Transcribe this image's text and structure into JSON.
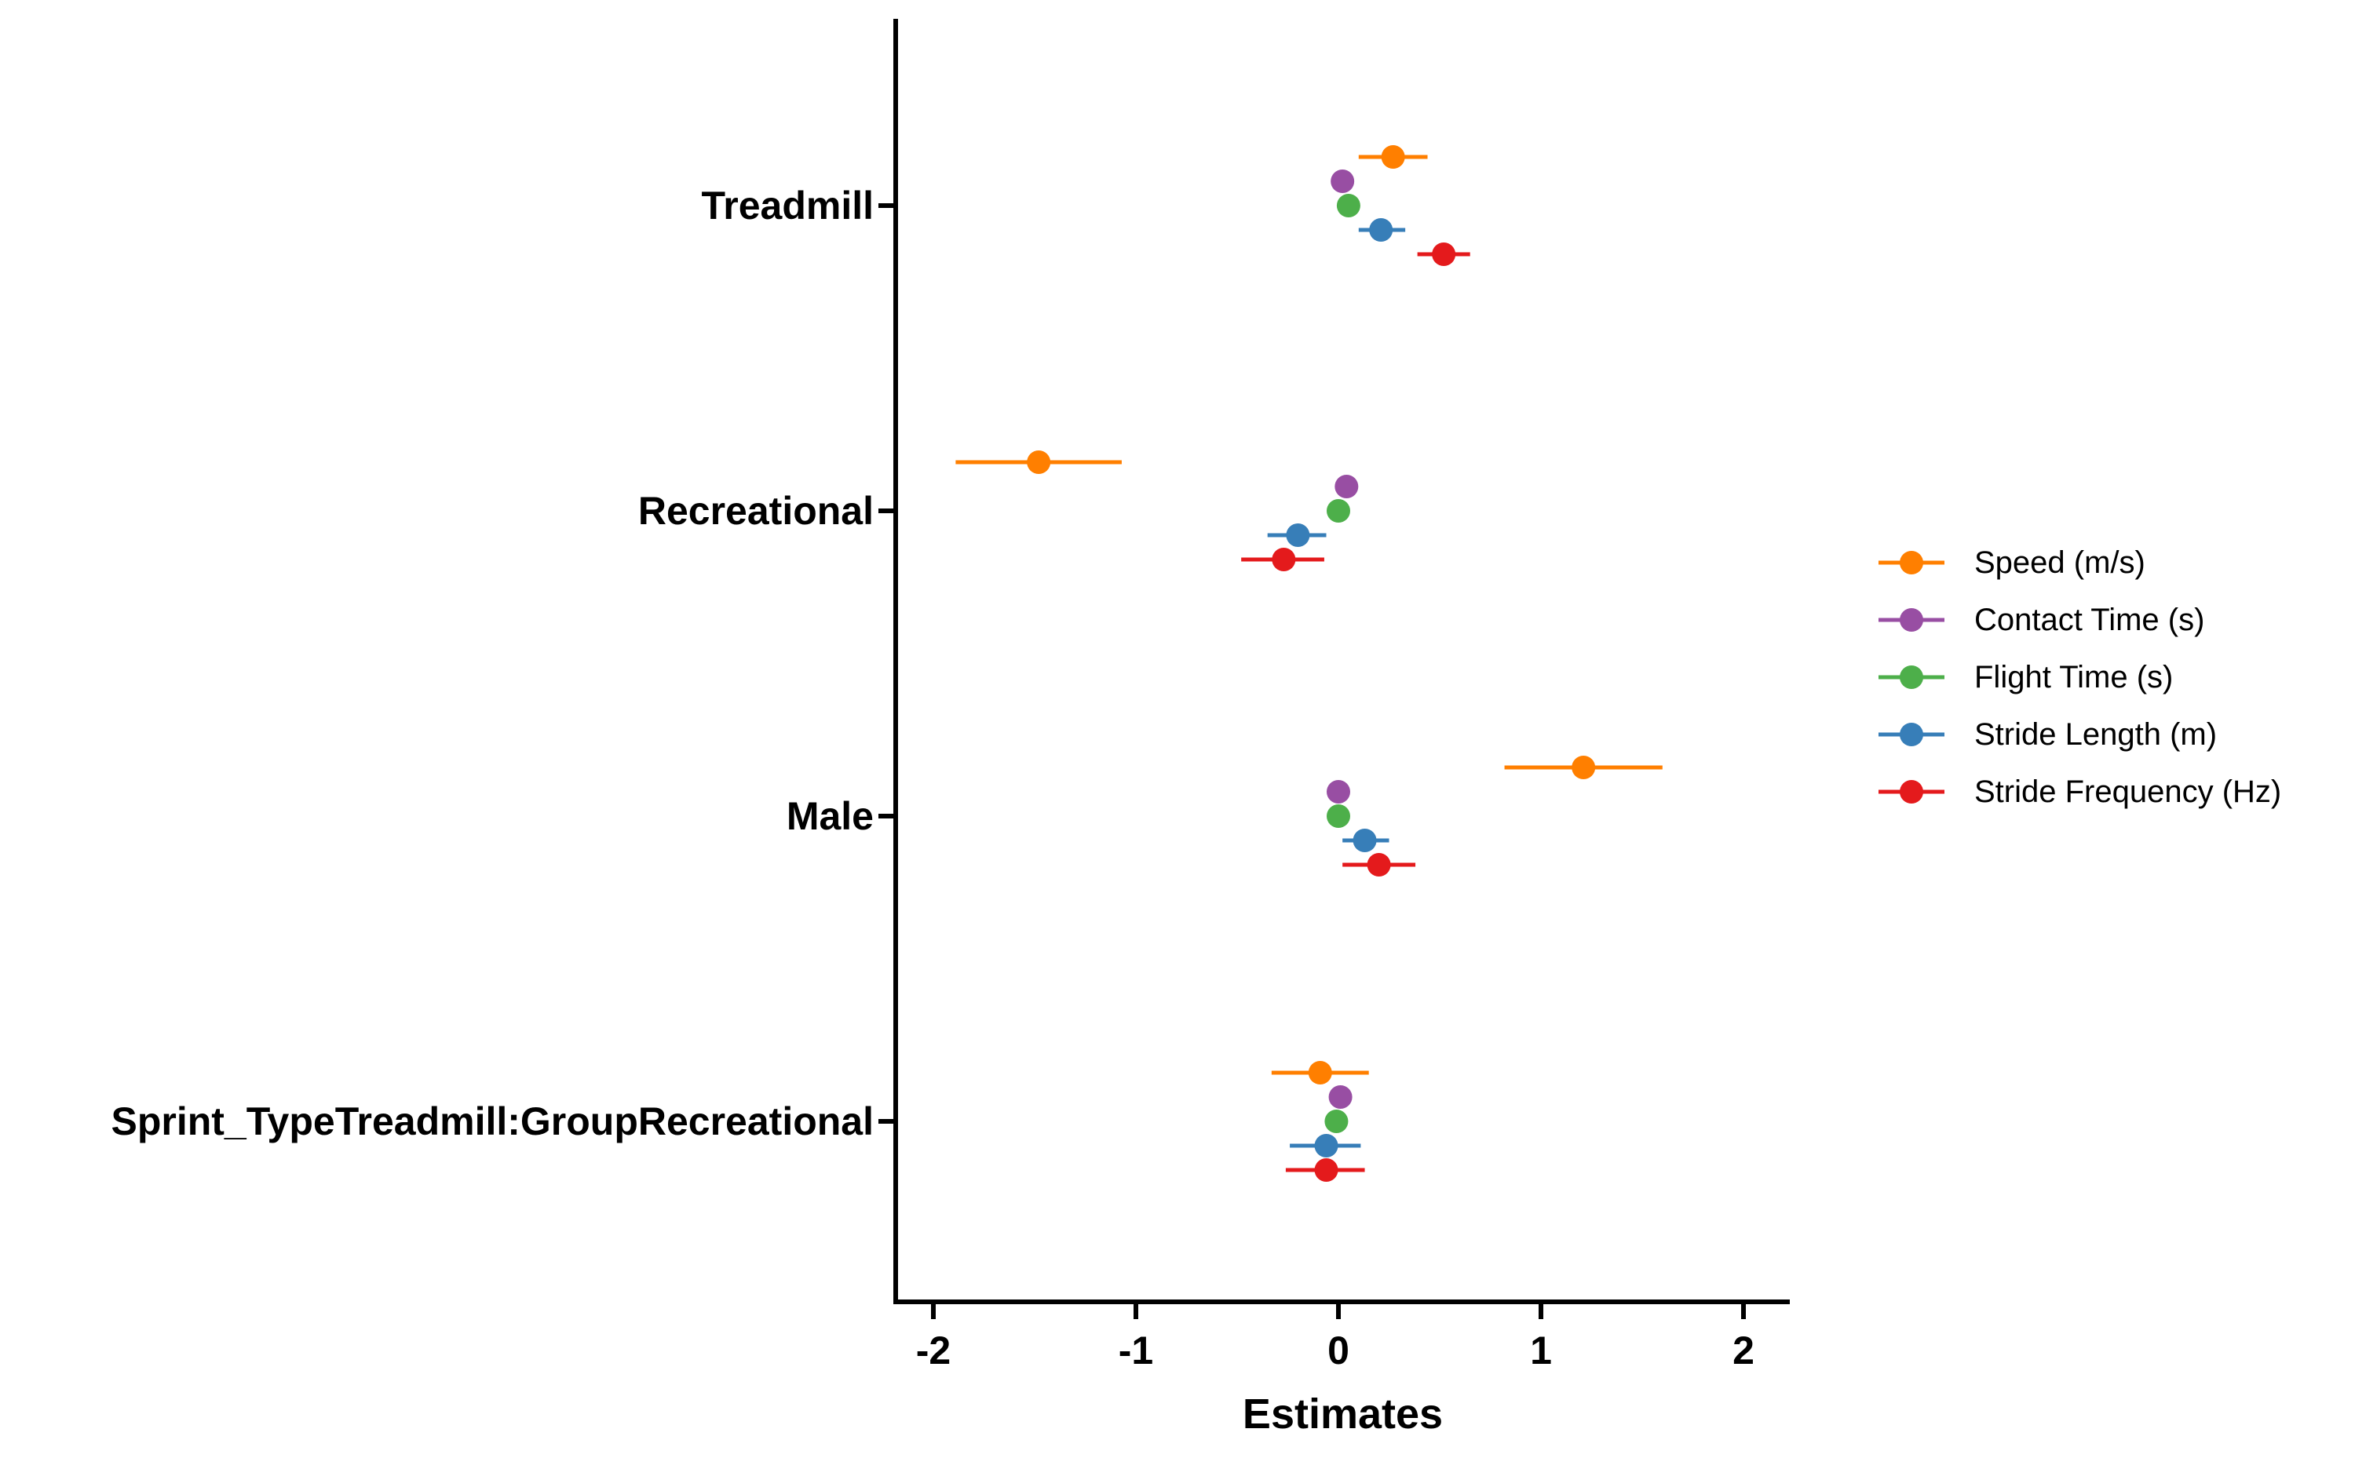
{
  "chart_data": {
    "type": "scatter",
    "subtype": "coefficient-plot",
    "orientation": "horizontal",
    "title": "",
    "xlabel": "Estimates",
    "ylabel": "",
    "xlim": [
      -2.2,
      2.2
    ],
    "xticks": [
      -2,
      -1,
      0,
      1,
      2
    ],
    "xtick_labels": [
      "-2",
      "-1",
      "0",
      "1",
      "2"
    ],
    "categories": [
      "Treadmill",
      "Recreational",
      "Male",
      "Sprint_TypeTreadmill:GroupRecreational"
    ],
    "grid": false,
    "legend_position": "right",
    "series": [
      {
        "name": "Speed (m/s)",
        "color": "#FF7F00",
        "estimates": [
          0.27,
          -1.48,
          1.21,
          -0.09
        ],
        "lower": [
          0.1,
          -1.89,
          0.82,
          -0.33
        ],
        "upper": [
          0.44,
          -1.07,
          1.6,
          0.15
        ]
      },
      {
        "name": "Contact Time (s)",
        "color": "#984EA3",
        "estimates": [
          0.02,
          0.04,
          0.0,
          0.01
        ],
        "lower": [
          0.01,
          0.03,
          -0.01,
          0.0
        ],
        "upper": [
          0.03,
          0.05,
          0.01,
          0.02
        ]
      },
      {
        "name": "Flight Time (s)",
        "color": "#4DAF4A",
        "estimates": [
          0.05,
          0.0,
          0.0,
          -0.01
        ],
        "lower": [
          0.04,
          -0.01,
          -0.01,
          -0.02
        ],
        "upper": [
          0.06,
          0.01,
          0.01,
          0.0
        ]
      },
      {
        "name": "Stride Length (m)",
        "color": "#377EB8",
        "estimates": [
          0.21,
          -0.2,
          0.13,
          -0.06
        ],
        "lower": [
          0.1,
          -0.35,
          0.02,
          -0.24
        ],
        "upper": [
          0.33,
          -0.06,
          0.25,
          0.11
        ]
      },
      {
        "name": "Stride Frequency (Hz)",
        "color": "#E41A1C",
        "estimates": [
          0.52,
          -0.27,
          0.2,
          -0.06
        ],
        "lower": [
          0.39,
          -0.48,
          0.02,
          -0.26
        ],
        "upper": [
          0.65,
          -0.07,
          0.38,
          0.13
        ]
      }
    ]
  }
}
